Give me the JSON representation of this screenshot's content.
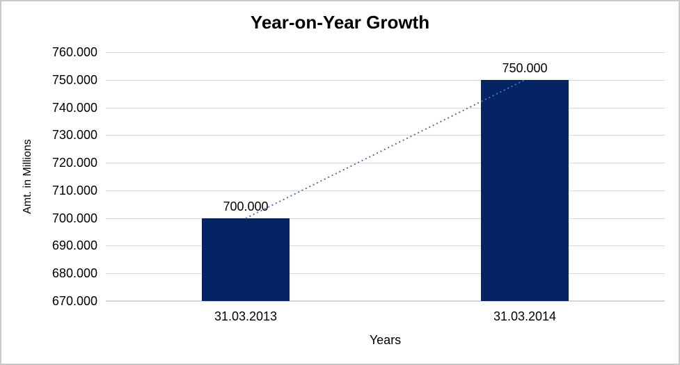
{
  "chart_data": {
    "type": "bar",
    "title": "Year-on-Year Growth",
    "xlabel": "Years",
    "ylabel": "Amt. in Millions",
    "categories": [
      "31.03.2013",
      "31.03.2014"
    ],
    "values": [
      700000,
      750000
    ],
    "data_labels": [
      "700.000",
      "750.000"
    ],
    "ylim": [
      670000,
      760000
    ],
    "y_tick_step": 10000,
    "y_ticks": [
      {
        "value": 670000,
        "label": "670.000"
      },
      {
        "value": 680000,
        "label": "680.000"
      },
      {
        "value": 690000,
        "label": "690.000"
      },
      {
        "value": 700000,
        "label": "700.000"
      },
      {
        "value": 710000,
        "label": "710.000"
      },
      {
        "value": 720000,
        "label": "720.000"
      },
      {
        "value": 730000,
        "label": "730.000"
      },
      {
        "value": 740000,
        "label": "740.000"
      },
      {
        "value": 750000,
        "label": "750.000"
      },
      {
        "value": 760000,
        "label": "760.000"
      }
    ],
    "grid": true,
    "legend": false,
    "bar_color": "#052464",
    "gridline_color": "#D9D9D9",
    "trendline": {
      "style": "dotted",
      "color": "#4472C4",
      "from_value": 700000,
      "to_value": 750000
    }
  }
}
